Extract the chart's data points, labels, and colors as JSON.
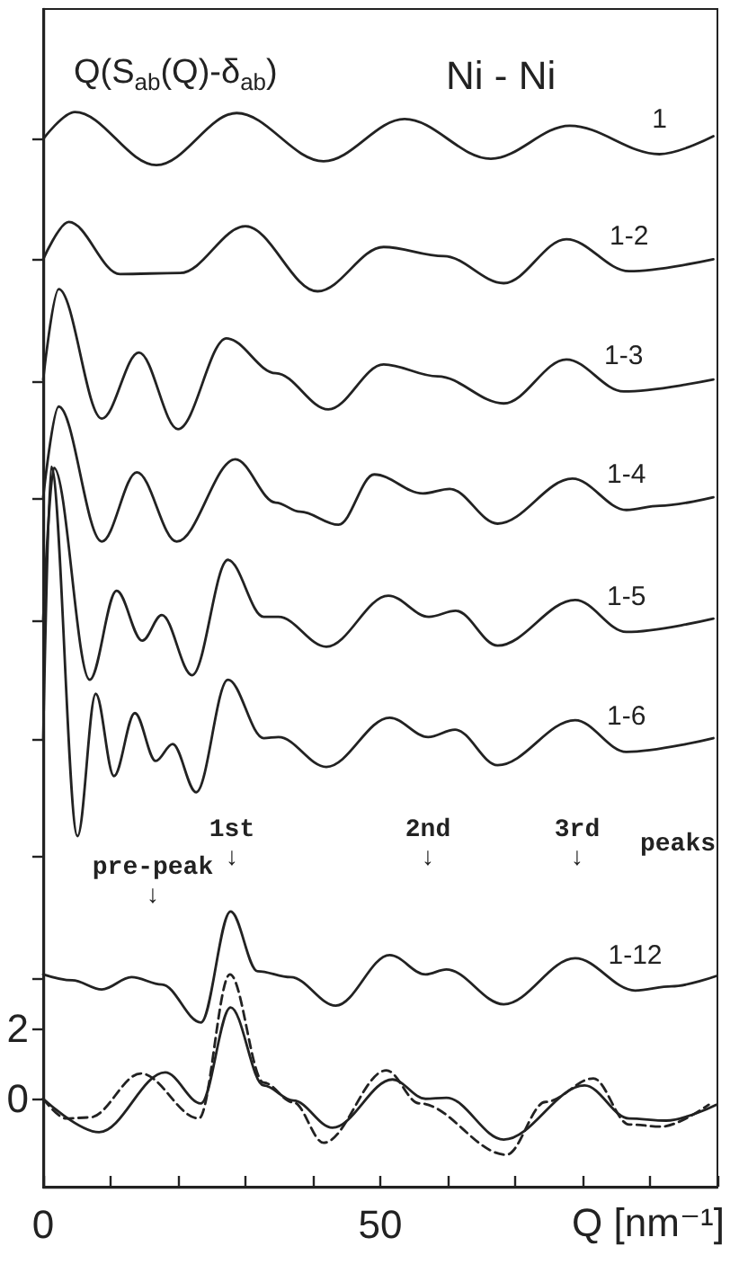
{
  "chart_data": {
    "type": "line",
    "title": "Ni - Ni",
    "ylabel": "Q(S$_{ab}$(Q)-δ$_{ab}$)",
    "xlabel": "Q [nm⁻¹]",
    "xlim": [
      0,
      100
    ],
    "xticks": [
      0,
      {
        "value": 10,
        "label": null
      },
      {
        "value": 20,
        "label": null
      },
      {
        "value": 30,
        "label": null
      },
      {
        "value": 40,
        "label": null
      },
      50,
      {
        "value": 60,
        "label": null
      },
      {
        "value": 70,
        "label": null
      },
      {
        "value": 80,
        "label": null
      },
      {
        "value": 90,
        "label": null
      },
      {
        "value": 100,
        "label": null
      }
    ],
    "ylim": [
      -2.5,
      31
    ],
    "yticks": [
      0,
      2,
      {
        "value": 3.4,
        "label": null
      },
      {
        "value": 6.9,
        "label": null
      },
      {
        "value": 10.2,
        "label": null
      },
      {
        "value": 13.6,
        "label": null
      },
      {
        "value": 17.1,
        "label": null
      },
      {
        "value": 20.4,
        "label": null
      },
      {
        "value": 23.9,
        "label": null
      },
      {
        "value": 27.3,
        "label": null
      }
    ],
    "marker": "none",
    "annotations": [
      "pre-peak\n↓",
      "1st\n↓",
      "2nd\n↓",
      "3rd\n↓",
      "peaks"
    ],
    "series": [
      {
        "name": "1",
        "color": "#222222",
        "x": [
          0,
          4.7,
          16.8,
          28.7,
          41.6,
          53.6,
          66.4,
          78.1,
          91.4,
          99.4
        ],
        "values": [
          27.3,
          28.07,
          26.56,
          28.04,
          26.67,
          27.87,
          26.74,
          27.68,
          26.87,
          27.38
        ]
      },
      {
        "name": "1-2",
        "color": "#222222",
        "x": [
          0,
          3.8,
          11.4,
          20.3,
          30,
          40.7,
          50.5,
          59.4,
          68.3,
          77.6,
          86.9,
          99.4
        ],
        "values": [
          23.88,
          24.94,
          23.46,
          23.49,
          24.82,
          22.97,
          24.23,
          23.97,
          23.2,
          24.45,
          23.54,
          23.88
        ]
      },
      {
        "name": "1-3",
        "color": "#222222",
        "x": [
          0,
          2.3,
          8.7,
          14.2,
          20,
          27.2,
          34.5,
          42.3,
          50.5,
          58.5,
          68.3,
          77.6,
          86.1,
          99.4
        ],
        "values": [
          20.46,
          23.03,
          19.35,
          21.23,
          19.05,
          21.63,
          20.64,
          19.61,
          20.89,
          20.55,
          19.78,
          21.03,
          20.12,
          20.46
        ]
      },
      {
        "name": "1-4",
        "color": "#222222",
        "x": [
          0,
          2.3,
          8.7,
          13.9,
          19.8,
          28.5,
          34.5,
          38.1,
          43.8,
          49.1,
          56.3,
          60.3,
          67.4,
          78.5,
          86.5,
          91.4,
          99.4
        ],
        "values": [
          17.11,
          19.69,
          15.85,
          17.82,
          15.85,
          18.19,
          16.96,
          16.7,
          16.33,
          17.76,
          17.22,
          17.35,
          16.36,
          17.64,
          16.75,
          16.87,
          17.11
        ]
      },
      {
        "name": "1-5",
        "color": "#222222",
        "x": [
          0,
          1.6,
          6.9,
          10.9,
          14.7,
          17.6,
          22.1,
          27.4,
          32.7,
          34.9,
          42,
          51.2,
          57.2,
          61.2,
          67.4,
          78.9,
          86.5,
          99.4
        ],
        "values": [
          13.63,
          17.95,
          11.92,
          14.45,
          13.03,
          13.76,
          12.05,
          15.33,
          13.71,
          13.71,
          12.86,
          14.31,
          13.71,
          13.88,
          12.89,
          14.19,
          13.28,
          13.66
        ]
      },
      {
        "name": "1-6",
        "color": "#222222",
        "x": [
          0,
          1.2,
          5.1,
          7.8,
          10.5,
          13.6,
          16.7,
          19.2,
          22.7,
          27.4,
          32.7,
          34.9,
          42,
          51.4,
          57.1,
          61.1,
          67.4,
          78.9,
          86.5,
          99.4
        ],
        "values": [
          10.19,
          17.98,
          7.47,
          11.52,
          9.18,
          10.97,
          9.61,
          10.09,
          8.72,
          11.92,
          10.26,
          10.29,
          9.44,
          10.84,
          10.29,
          10.5,
          9.49,
          10.77,
          9.87,
          10.26
        ]
      },
      {
        "name": "1-12",
        "color": "#222222",
        "x": [
          0,
          4.3,
          8.7,
          13.1,
          17.6,
          23.4,
          27.8,
          31.8,
          36.7,
          43.4,
          51.4,
          56.7,
          59.8,
          68.3,
          78.9,
          87.8,
          93.2,
          99.8
        ],
        "values": [
          3.54,
          3.37,
          3.11,
          3.46,
          3.25,
          2.17,
          5.33,
          3.63,
          3.46,
          2.65,
          4.09,
          3.54,
          3.68,
          2.69,
          4.0,
          3.08,
          3.2,
          3.49
        ]
      },
      {
        "color": "#222222",
        "x": [
          0,
          8.3,
          18.1,
          23.4,
          27.8,
          32.7,
          37.1,
          42.9,
          51.8,
          56.7,
          59.8,
          68.3,
          80.3,
          86.9,
          92.4,
          99.8
        ],
        "values": [
          0,
          -0.95,
          0.75,
          -0.13,
          2.6,
          0.38,
          -0.05,
          -0.82,
          0.55,
          0,
          0.03,
          -1.16,
          0.38,
          -0.56,
          -0.62,
          -0.17
        ]
      },
      {
        "color": "#222222",
        "line_style": "dashed",
        "x": [
          0,
          3.4,
          6.9,
          14.5,
          23.1,
          27.7,
          32.7,
          37.1,
          41.6,
          50.9,
          55.8,
          68.7,
          74.5,
          81.6,
          86.9,
          91.7,
          98.7
        ],
        "values": [
          0,
          -0.56,
          -0.53,
          0.72,
          -0.56,
          3.54,
          0.46,
          -0.1,
          -1.25,
          0.81,
          -0.13,
          -1.59,
          -0.09,
          0.58,
          -0.73,
          -0.79,
          -0.17
        ]
      }
    ]
  }
}
